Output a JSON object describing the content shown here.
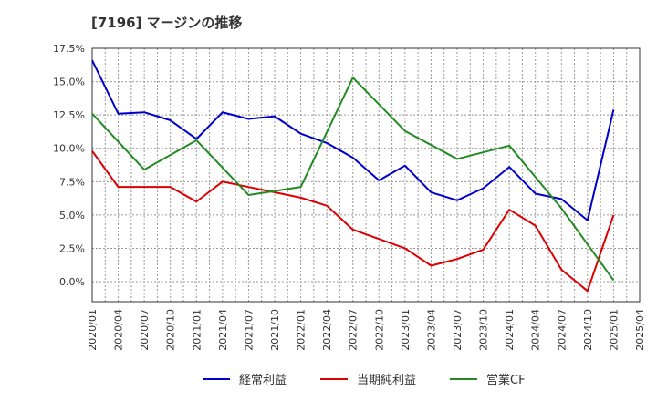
{
  "chart_data": {
    "type": "line",
    "title": "[7196]  マージンの推移",
    "xlabel": "",
    "ylabel": "",
    "ylim": [
      -1.5,
      17.5
    ],
    "y_ticks": [
      17.5,
      15.0,
      12.5,
      10.0,
      7.5,
      5.0,
      2.5,
      0.0
    ],
    "y_tick_labels": [
      "17.5%",
      "15.0%",
      "12.5%",
      "10.0%",
      "7.5%",
      "5.0%",
      "2.5%",
      "0.0%"
    ],
    "x_tick_labels": [
      "2020/01",
      "2020/04",
      "2020/07",
      "2020/10",
      "2021/01",
      "2021/04",
      "2021/07",
      "2021/10",
      "2022/01",
      "2022/04",
      "2022/07",
      "2022/10",
      "2023/01",
      "2023/04",
      "2023/07",
      "2023/10",
      "2024/01",
      "2024/04",
      "2024/07",
      "2024/10",
      "2025/01",
      "2025/04"
    ],
    "grid": true,
    "legend_position": "bottom",
    "series": [
      {
        "name": "経常利益",
        "color": "#0000cc",
        "points": [
          [
            "2020/01",
            16.6
          ],
          [
            "2020/04",
            12.6
          ],
          [
            "2020/07",
            12.7
          ],
          [
            "2020/10",
            12.1
          ],
          [
            "2021/01",
            10.7
          ],
          [
            "2021/04",
            12.7
          ],
          [
            "2021/07",
            12.2
          ],
          [
            "2021/10",
            12.4
          ],
          [
            "2022/01",
            11.1
          ],
          [
            "2022/04",
            10.4
          ],
          [
            "2022/07",
            9.3
          ],
          [
            "2022/10",
            7.6
          ],
          [
            "2023/01",
            8.7
          ],
          [
            "2023/04",
            6.7
          ],
          [
            "2023/07",
            6.1
          ],
          [
            "2023/10",
            7.0
          ],
          [
            "2024/01",
            8.6
          ],
          [
            "2024/04",
            6.6
          ],
          [
            "2024/07",
            6.2
          ],
          [
            "2024/10",
            4.6
          ],
          [
            "2025/01",
            12.9
          ]
        ]
      },
      {
        "name": "当期純利益",
        "color": "#dd0000",
        "points": [
          [
            "2020/01",
            9.8
          ],
          [
            "2020/04",
            7.1
          ],
          [
            "2020/07",
            7.1
          ],
          [
            "2020/10",
            7.1
          ],
          [
            "2021/01",
            6.0
          ],
          [
            "2021/04",
            7.5
          ],
          [
            "2021/07",
            7.1
          ],
          [
            "2021/10",
            6.7
          ],
          [
            "2022/01",
            6.3
          ],
          [
            "2022/04",
            5.7
          ],
          [
            "2022/07",
            3.9
          ],
          [
            "2022/10",
            3.2
          ],
          [
            "2023/01",
            2.5
          ],
          [
            "2023/04",
            1.2
          ],
          [
            "2023/07",
            1.7
          ],
          [
            "2023/10",
            2.4
          ],
          [
            "2024/01",
            5.4
          ],
          [
            "2024/04",
            4.2
          ],
          [
            "2024/07",
            0.9
          ],
          [
            "2024/10",
            -0.7
          ],
          [
            "2025/01",
            5.0
          ]
        ]
      },
      {
        "name": "営業CF",
        "color": "#228b22",
        "points": [
          [
            "2020/01",
            12.6
          ],
          [
            "2020/07",
            8.4
          ],
          [
            "2021/01",
            10.6
          ],
          [
            "2021/07",
            6.5
          ],
          [
            "2022/01",
            7.1
          ],
          [
            "2022/07",
            15.3
          ],
          [
            "2023/01",
            11.3
          ],
          [
            "2023/07",
            9.2
          ],
          [
            "2024/01",
            10.2
          ],
          [
            "2024/07",
            5.5
          ],
          [
            "2025/01",
            0.1
          ]
        ]
      }
    ]
  }
}
